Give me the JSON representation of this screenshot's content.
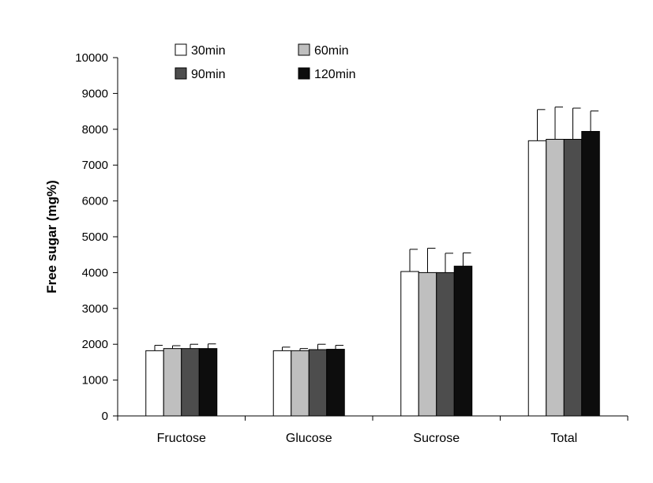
{
  "chart_data": {
    "type": "bar",
    "title": "",
    "xlabel": "",
    "ylabel": "Free sugar (mg%)",
    "ylim": [
      0,
      10000
    ],
    "yticks": [
      0,
      1000,
      2000,
      3000,
      4000,
      5000,
      6000,
      7000,
      8000,
      9000,
      10000
    ],
    "grid": false,
    "legend": "top-left",
    "categories": [
      "Fructose",
      "Glucose",
      "Sucrose",
      "Total"
    ],
    "series": [
      {
        "name": "30min",
        "color": "#ffffff",
        "values": [
          1820,
          1820,
          4030,
          7680
        ],
        "errors": [
          150,
          100,
          620,
          870
        ]
      },
      {
        "name": "60min",
        "color": "#bfbfbf",
        "values": [
          1880,
          1820,
          4000,
          7720
        ],
        "errors": [
          80,
          60,
          680,
          900
        ]
      },
      {
        "name": "90min",
        "color": "#4d4d4d",
        "values": [
          1880,
          1850,
          4000,
          7720
        ],
        "errors": [
          120,
          150,
          540,
          870
        ]
      },
      {
        "name": "120min",
        "color": "#0d0d0d",
        "values": [
          1880,
          1860,
          4180,
          7940
        ],
        "errors": [
          130,
          110,
          370,
          570
        ]
      }
    ]
  }
}
